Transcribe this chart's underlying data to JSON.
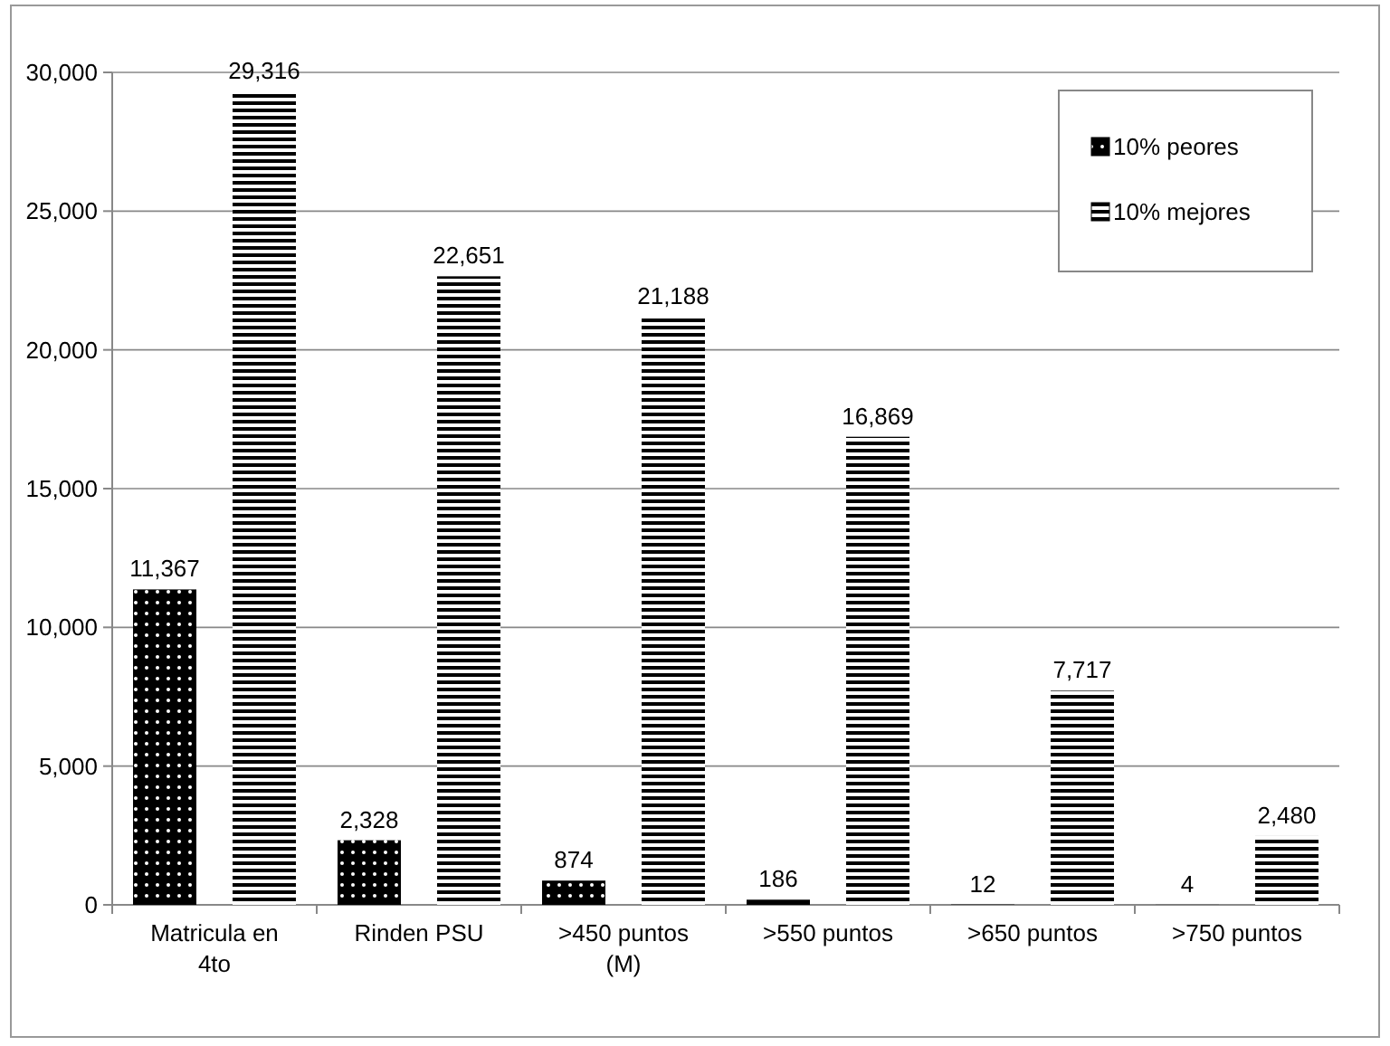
{
  "chart_data": {
    "type": "bar",
    "categories": [
      "Matricula en 4to",
      "Rinden PSU",
      ">450 puntos (M)",
      ">550 puntos",
      ">650 puntos",
      ">750 puntos"
    ],
    "series": [
      {
        "name": "10% peores",
        "color": "#000000",
        "values": [
          11367,
          2328,
          874,
          186,
          12,
          4
        ],
        "value_labels": [
          "11,367",
          "2,328",
          "874",
          "186",
          "12",
          "4"
        ]
      },
      {
        "name": "10% mejores",
        "color": "#000000",
        "values": [
          29316,
          22651,
          21188,
          16869,
          7717,
          2480
        ],
        "value_labels": [
          "29,316",
          "22,651",
          "21,188",
          "16,869",
          "7,717",
          "2,480"
        ]
      }
    ],
    "ylim": [
      0,
      30000
    ],
    "yticks": [
      {
        "value": 0,
        "label": "0"
      },
      {
        "value": 5000,
        "label": "5,000"
      },
      {
        "value": 10000,
        "label": "10,000"
      },
      {
        "value": 15000,
        "label": "15,000"
      },
      {
        "value": 20000,
        "label": "20,000"
      },
      {
        "value": 25000,
        "label": "25,000"
      },
      {
        "value": 30000,
        "label": "30,000"
      }
    ],
    "grid": "y",
    "legend": "top right"
  }
}
